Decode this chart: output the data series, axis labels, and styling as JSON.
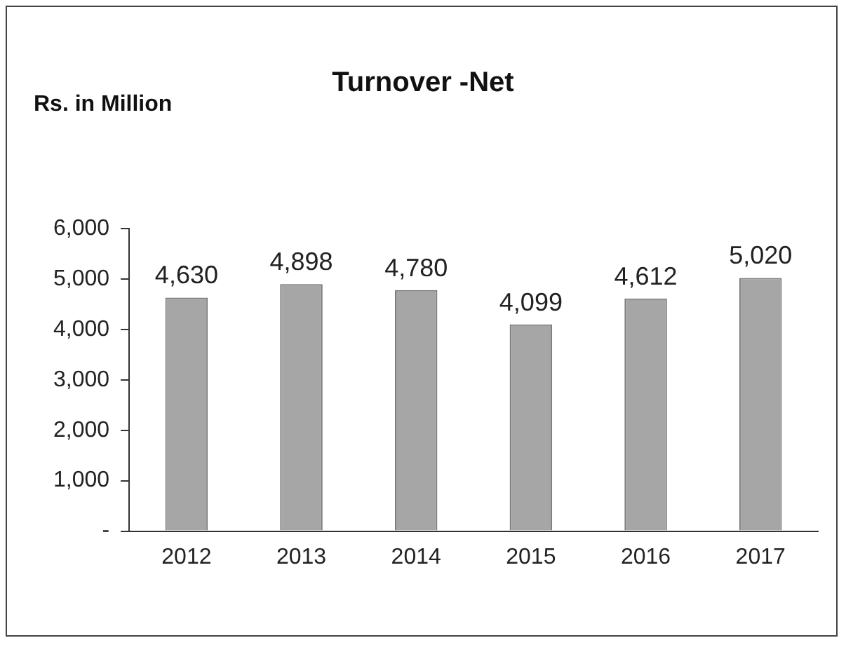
{
  "chart_data": {
    "type": "bar",
    "title": "Turnover -Net",
    "ylabel": "Rs. in Million",
    "categories": [
      "2012",
      "2013",
      "2014",
      "2015",
      "2016",
      "2017"
    ],
    "values": [
      4630,
      4898,
      4780,
      4099,
      4612,
      5020
    ],
    "color": "#a6a6a6",
    "value_labels": [
      "4,630",
      "4,898",
      "4,780",
      "4,099",
      "4,612",
      "5,020"
    ],
    "ylim": [
      0,
      6000
    ],
    "yticks": [
      {
        "value": 0,
        "label": "-"
      },
      {
        "value": 1000,
        "label": "1,000"
      },
      {
        "value": 2000,
        "label": "2,000"
      },
      {
        "value": 3000,
        "label": "3,000"
      },
      {
        "value": 4000,
        "label": "4,000"
      },
      {
        "value": 5000,
        "label": "5,000"
      },
      {
        "value": 6000,
        "label": "6,000"
      }
    ],
    "grid": false,
    "legend": false
  }
}
